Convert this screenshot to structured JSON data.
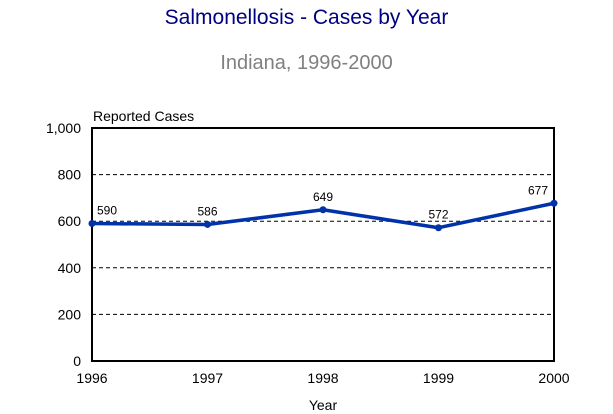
{
  "chart_data": {
    "type": "line",
    "title": "Salmonellosis - Cases by Year",
    "subtitle": "Indiana, 1996-2000",
    "xlabel": "Year",
    "ylabel": "Reported Cases",
    "categories": [
      "1996",
      "1997",
      "1998",
      "1999",
      "2000"
    ],
    "series": [
      {
        "name": "Reported Cases",
        "values": [
          590,
          586,
          649,
          572,
          677
        ],
        "color": "#0033aa"
      }
    ],
    "ylim": [
      0,
      1000
    ],
    "yticks": [
      0,
      200,
      400,
      600,
      800,
      1000
    ],
    "ytick_labels": [
      "0",
      "200",
      "400",
      "600",
      "800",
      "1,000"
    ],
    "data_labels": [
      "590",
      "586",
      "649",
      "572",
      "677"
    ],
    "grid": "horizontal dashed"
  }
}
